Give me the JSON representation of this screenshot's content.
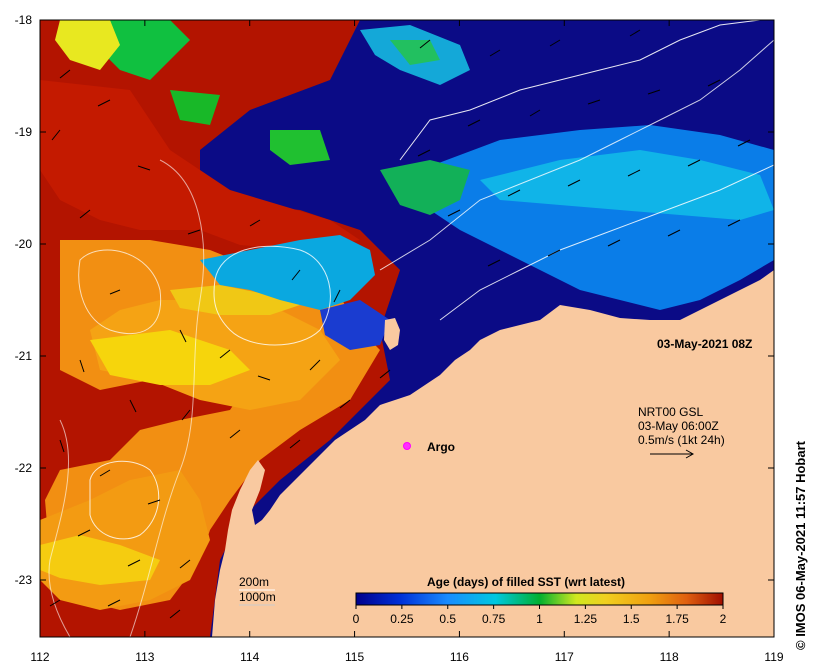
{
  "map": {
    "title": "03-May-2021 08Z",
    "credit": "© IMOS 06-May-2021 11:57 Hobart",
    "x_ticks": [
      "112",
      "113",
      "114",
      "115",
      "116",
      "117",
      "118",
      "119"
    ],
    "y_ticks": [
      "-18",
      "-19",
      "-20",
      "-21",
      "-22",
      "-23"
    ],
    "current_legend": {
      "line1": "NRT00 GSL",
      "line2": "03-May 06:00Z",
      "line3": "0.5m/s (1kt 24h)"
    },
    "argo_label": "Argo",
    "isobaths": [
      "200m",
      "1000m"
    ],
    "colorbar": {
      "title": "Age (days) of filled SST (wrt latest)",
      "ticks": [
        "0",
        "0.25",
        "0.5",
        "0.75",
        "1",
        "1.25",
        "1.5",
        "1.75",
        "2"
      ]
    },
    "colors": {
      "land": "#f9c9a0",
      "age_0": "#0a0a8a",
      "age_2": "#b31400"
    }
  }
}
